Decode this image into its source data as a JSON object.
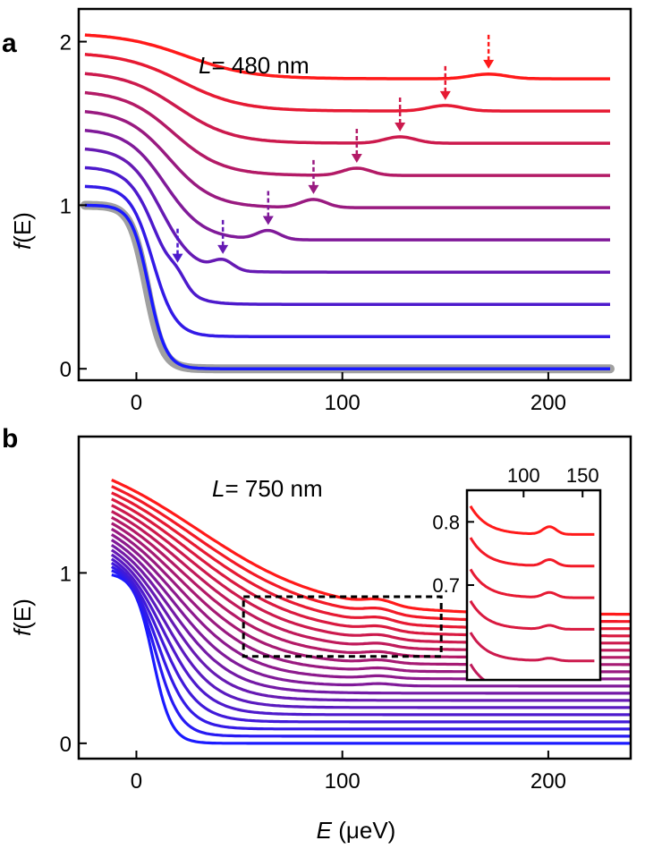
{
  "panel_a": {
    "label": "a",
    "annotation_L": "L",
    "annotation_rest": "= 480 nm",
    "ylabel_f": "f",
    "ylabel_E": "(E)",
    "xticks": [
      "0",
      "100",
      "200"
    ],
    "yticks": [
      "0",
      "1",
      "2"
    ]
  },
  "panel_b": {
    "label": "b",
    "annotation_L": "L",
    "annotation_rest": "= 750 nm",
    "ylabel_f": "f",
    "ylabel_E": "(E)",
    "xticks": [
      "0",
      "100",
      "200"
    ],
    "yticks": [
      "0",
      "1"
    ],
    "xlabel_E": "E",
    "xlabel_unit": " (μeV)",
    "inset_xticks": [
      "100",
      "150"
    ],
    "inset_yticks": [
      "0.8",
      "0.7"
    ]
  },
  "chart_data": [
    {
      "type": "line",
      "panel": "a",
      "xlim": [
        -28,
        240
      ],
      "ylim": [
        -0.07,
        2.2
      ],
      "x_ticks": [
        0,
        100,
        200
      ],
      "y_ticks": [
        0,
        1,
        2
      ],
      "x_range": [
        -25,
        230
      ],
      "n_curves": 10,
      "offset_step": 0.117,
      "peak_positions": [
        20,
        42,
        64,
        86,
        107,
        128,
        150,
        171
      ],
      "arrows_at": [
        20,
        42,
        64,
        86,
        107,
        128,
        150,
        171
      ],
      "reference_curve": {
        "color": "#a0a0a0",
        "offset": 0
      },
      "color_start": "#1a1aff",
      "color_end": "#ff1a1a"
    },
    {
      "type": "line",
      "panel": "b",
      "xlim": [
        -28,
        240
      ],
      "ylim": [
        -0.09,
        1.8
      ],
      "x_ticks": [
        0,
        100,
        200
      ],
      "y_ticks": [
        0,
        1
      ],
      "x_range": [
        -12,
        240
      ],
      "n_curves": 19,
      "offset_step": 0.042,
      "dashed_box": {
        "x": [
          52,
          148
        ],
        "y": [
          0.51,
          0.86
        ]
      },
      "color_start": "#1a1aff",
      "color_end": "#ff1a1a",
      "inset": {
        "x_ticks": [
          100,
          150
        ],
        "y_ticks": [
          0.7,
          0.8
        ],
        "xlim": [
          52,
          165
        ],
        "ylim": [
          0.55,
          0.85
        ]
      }
    }
  ]
}
